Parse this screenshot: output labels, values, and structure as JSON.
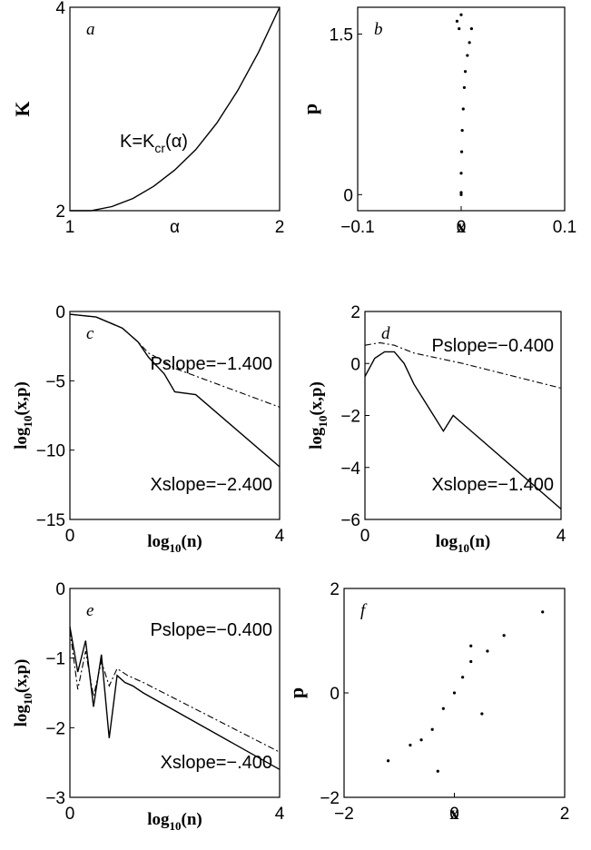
{
  "chart_data": [
    {
      "id": "a",
      "type": "line",
      "panel_label": "a",
      "xlim": [
        1,
        2
      ],
      "ylim": [
        2,
        4
      ],
      "xticks": [
        "1",
        "2"
      ],
      "yticks": [
        "2",
        "4"
      ],
      "xlabel": "α",
      "ylabel": "K",
      "annotation": "K=K",
      "annotation_sub": "cr",
      "annotation_tail": "(α)",
      "series": [
        {
          "x": [
            1.0,
            1.1,
            1.2,
            1.3,
            1.4,
            1.5,
            1.6,
            1.7,
            1.8,
            1.9,
            2.0
          ],
          "y": [
            2.0,
            2.0,
            2.04,
            2.12,
            2.24,
            2.4,
            2.6,
            2.86,
            3.18,
            3.56,
            4.0
          ]
        }
      ]
    },
    {
      "id": "b",
      "type": "scatter",
      "panel_label": "b",
      "xlim": [
        -0.1,
        0.1
      ],
      "ylim": [
        -0.15,
        1.75
      ],
      "xticks": [
        "−0.1",
        "0",
        "0.1"
      ],
      "yticks": [
        "0",
        "1.5"
      ],
      "xlabel": "x",
      "ylabel": "p",
      "series": [
        {
          "x": [
            0.0,
            0.0,
            0.0005,
            0.001,
            0.002,
            0.003,
            0.004,
            0.006,
            0.008,
            0.01,
            -0.002,
            -0.004,
            0.0,
            0.0
          ],
          "y": [
            0.0,
            0.2,
            0.4,
            0.6,
            0.8,
            1.0,
            1.15,
            1.3,
            1.42,
            1.55,
            1.55,
            1.62,
            1.68,
            0.02
          ]
        }
      ]
    },
    {
      "id": "c",
      "type": "line",
      "panel_label": "c",
      "xlim": [
        0,
        4
      ],
      "ylim": [
        -15,
        0
      ],
      "xticks": [
        "0",
        "4"
      ],
      "yticks": [
        "0",
        "−5",
        "−10",
        "−15"
      ],
      "xlabel": "log",
      "xlabel_sub": "10",
      "xlabel_tail": "(n)",
      "ylabel": "log",
      "ylabel_sub": "10",
      "ylabel_tail": "(x,p)",
      "annotations": [
        "Pslope=−1.400",
        "Xslope=−2.400"
      ],
      "series": [
        {
          "name": "x",
          "x": [
            0,
            0.5,
            1.0,
            1.3,
            1.5,
            1.8,
            2.0,
            2.4,
            4.0
          ],
          "y": [
            -0.2,
            -0.4,
            -1.2,
            -2.2,
            -3.3,
            -4.5,
            -5.8,
            -6.0,
            -11.2
          ]
        },
        {
          "name": "p",
          "x": [
            0,
            0.5,
            1.0,
            1.3,
            1.5,
            1.8,
            2.0,
            4.0
          ],
          "y": [
            -0.2,
            -0.4,
            -1.2,
            -2.2,
            -3.0,
            -3.6,
            -4.1,
            -6.9
          ]
        }
      ]
    },
    {
      "id": "d",
      "type": "line",
      "panel_label": "d",
      "xlim": [
        0,
        4
      ],
      "ylim": [
        -6,
        2
      ],
      "xticks": [
        "0",
        "4"
      ],
      "yticks": [
        "2",
        "0",
        "−2",
        "−4",
        "−6"
      ],
      "xlabel": "log",
      "xlabel_sub": "10",
      "xlabel_tail": "(n)",
      "ylabel": "log",
      "ylabel_sub": "10",
      "ylabel_tail": "(x,p)",
      "annotations": [
        "Pslope=−0.400",
        "Xslope=−1.400"
      ],
      "series": [
        {
          "name": "x",
          "x": [
            0,
            0.2,
            0.4,
            0.6,
            0.8,
            1.0,
            1.2,
            1.4,
            1.6,
            1.8,
            4.0
          ],
          "y": [
            -0.5,
            0.2,
            0.45,
            0.45,
            0.0,
            -0.8,
            -1.4,
            -2.0,
            -2.6,
            -2.0,
            -5.6
          ]
        },
        {
          "name": "p",
          "x": [
            0,
            0.3,
            0.6,
            1.0,
            1.5,
            2.0,
            4.0
          ],
          "y": [
            0.7,
            0.8,
            0.7,
            0.4,
            0.2,
            0.0,
            -0.95
          ]
        }
      ]
    },
    {
      "id": "e",
      "type": "line",
      "panel_label": "e",
      "xlim": [
        0,
        4
      ],
      "ylim": [
        -3,
        0
      ],
      "xticks": [
        "0",
        "4"
      ],
      "yticks": [
        "0",
        "−1",
        "−2",
        "−3"
      ],
      "xlabel": "log",
      "xlabel_sub": "10",
      "xlabel_tail": "(n)",
      "ylabel": "log",
      "ylabel_sub": "10",
      "ylabel_tail": "(x,p)",
      "annotations": [
        "Pslope=−0.400",
        "Xslope=−.400"
      ],
      "series": [
        {
          "name": "x",
          "x": [
            0,
            0.15,
            0.3,
            0.45,
            0.6,
            0.75,
            0.9,
            1.05,
            1.2,
            1.4,
            4.0
          ],
          "y": [
            -0.55,
            -1.2,
            -0.75,
            -1.7,
            -0.95,
            -2.15,
            -1.25,
            -1.35,
            -1.4,
            -1.5,
            -2.6
          ]
        },
        {
          "name": "p",
          "x": [
            0,
            0.15,
            0.3,
            0.45,
            0.6,
            0.75,
            0.9,
            1.1,
            1.4,
            4.0
          ],
          "y": [
            -0.6,
            -1.45,
            -0.9,
            -1.55,
            -1.05,
            -1.4,
            -1.15,
            -1.25,
            -1.35,
            -2.35
          ]
        }
      ]
    },
    {
      "id": "f",
      "type": "scatter",
      "panel_label": "f",
      "xlim": [
        -2,
        2
      ],
      "ylim": [
        -2,
        2
      ],
      "xticks": [
        "−2",
        "0",
        "2"
      ],
      "yticks": [
        "2",
        "0",
        "−2"
      ],
      "xlabel": "x",
      "ylabel": "p",
      "series": [
        {
          "x": [
            -1.2,
            -0.8,
            -0.4,
            -0.2,
            0.0,
            0.15,
            0.3,
            0.6,
            0.9,
            1.6,
            -0.3,
            0.5,
            0.3,
            -0.6
          ],
          "y": [
            -1.3,
            -1.0,
            -0.7,
            -0.3,
            0.0,
            0.3,
            0.6,
            0.8,
            1.1,
            1.55,
            -1.5,
            -0.4,
            0.9,
            -0.9
          ]
        }
      ]
    }
  ]
}
